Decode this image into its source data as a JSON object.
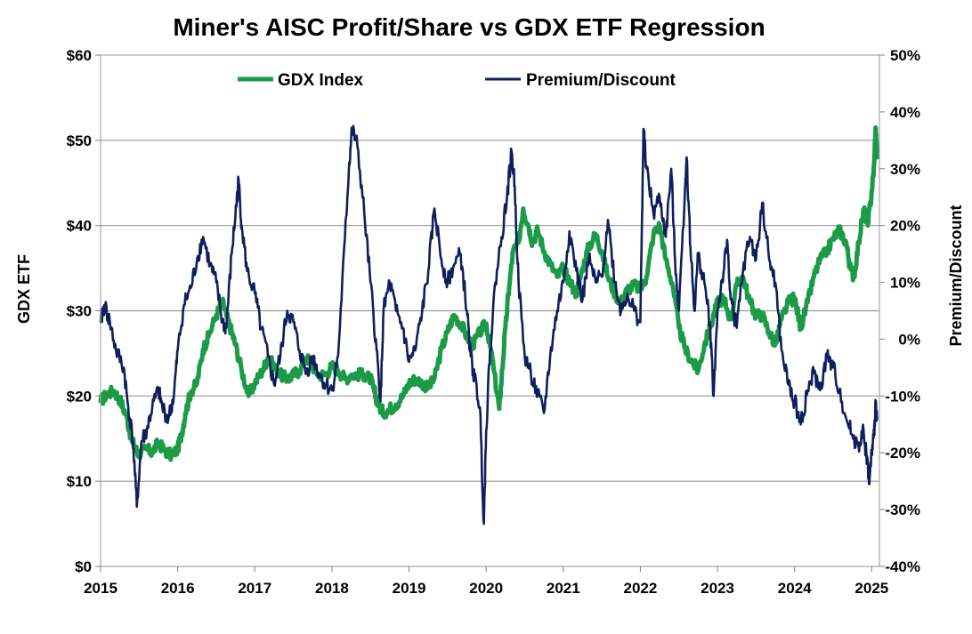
{
  "chart_data": {
    "type": "line",
    "title": "Miner's AISC Profit/Share vs GDX ETF Regression",
    "ylabel": "GDX ETF",
    "y2label": "Premium/Discount",
    "xlim": [
      2015,
      2025.1
    ],
    "ylim": [
      0,
      60
    ],
    "y2lim": [
      -40,
      50
    ],
    "x_ticks": [
      "2015",
      "2016",
      "2017",
      "2018",
      "2019",
      "2020",
      "2021",
      "2022",
      "2023",
      "2024",
      "2025"
    ],
    "y_ticks": [
      "$0",
      "$10",
      "$20",
      "$30",
      "$40",
      "$50",
      "$60"
    ],
    "y2_ticks": [
      "-40%",
      "-30%",
      "-20%",
      "-10%",
      "0%",
      "10%",
      "20%",
      "30%",
      "40%",
      "50%"
    ],
    "legend_position": "top-center",
    "grid": "horizontal",
    "colors": {
      "gdx": "#1b9a47",
      "premium": "#0f1f5c",
      "grid": "#9a9a9a",
      "border": "#a6a6a6"
    },
    "series": [
      {
        "name": "GDX Index",
        "axis": "left",
        "points": [
          [
            2015.0,
            19.4
          ],
          [
            2015.08,
            20.2
          ],
          [
            2015.17,
            20.6
          ],
          [
            2015.25,
            19.6
          ],
          [
            2015.33,
            17.8
          ],
          [
            2015.4,
            15.0
          ],
          [
            2015.45,
            13.8
          ],
          [
            2015.5,
            13.2
          ],
          [
            2015.58,
            13.8
          ],
          [
            2015.67,
            13.4
          ],
          [
            2015.75,
            14.5
          ],
          [
            2015.83,
            13.6
          ],
          [
            2015.92,
            13.0
          ],
          [
            2016.0,
            13.8
          ],
          [
            2016.05,
            15.5
          ],
          [
            2016.1,
            18.0
          ],
          [
            2016.17,
            20.5
          ],
          [
            2016.25,
            21.5
          ],
          [
            2016.33,
            25.5
          ],
          [
            2016.4,
            27.0
          ],
          [
            2016.5,
            29.5
          ],
          [
            2016.58,
            31.0
          ],
          [
            2016.63,
            29.5
          ],
          [
            2016.7,
            27.5
          ],
          [
            2016.75,
            26.0
          ],
          [
            2016.83,
            23.0
          ],
          [
            2016.92,
            20.0
          ],
          [
            2017.0,
            21.5
          ],
          [
            2017.1,
            23.0
          ],
          [
            2017.17,
            24.5
          ],
          [
            2017.25,
            23.5
          ],
          [
            2017.33,
            22.5
          ],
          [
            2017.42,
            22.0
          ],
          [
            2017.5,
            22.5
          ],
          [
            2017.58,
            23.0
          ],
          [
            2017.67,
            24.5
          ],
          [
            2017.75,
            23.5
          ],
          [
            2017.83,
            22.5
          ],
          [
            2017.92,
            22.5
          ],
          [
            2018.0,
            23.5
          ],
          [
            2018.08,
            23.0
          ],
          [
            2018.17,
            22.0
          ],
          [
            2018.25,
            22.5
          ],
          [
            2018.33,
            22.5
          ],
          [
            2018.42,
            22.5
          ],
          [
            2018.5,
            22.0
          ],
          [
            2018.55,
            20.5
          ],
          [
            2018.6,
            19.0
          ],
          [
            2018.67,
            18.0
          ],
          [
            2018.75,
            18.5
          ],
          [
            2018.83,
            19.0
          ],
          [
            2018.92,
            20.0
          ],
          [
            2019.0,
            21.5
          ],
          [
            2019.08,
            22.0
          ],
          [
            2019.17,
            21.5
          ],
          [
            2019.25,
            21.0
          ],
          [
            2019.33,
            22.0
          ],
          [
            2019.42,
            25.5
          ],
          [
            2019.5,
            27.5
          ],
          [
            2019.58,
            29.5
          ],
          [
            2019.67,
            28.5
          ],
          [
            2019.75,
            27.0
          ],
          [
            2019.83,
            26.0
          ],
          [
            2019.92,
            27.5
          ],
          [
            2020.0,
            28.5
          ],
          [
            2020.05,
            26.0
          ],
          [
            2020.1,
            23.0
          ],
          [
            2020.17,
            18.5
          ],
          [
            2020.2,
            22.0
          ],
          [
            2020.25,
            28.0
          ],
          [
            2020.3,
            33.0
          ],
          [
            2020.35,
            37.0
          ],
          [
            2020.42,
            38.0
          ],
          [
            2020.48,
            42.0
          ],
          [
            2020.55,
            40.0
          ],
          [
            2020.6,
            38.0
          ],
          [
            2020.67,
            39.5
          ],
          [
            2020.75,
            37.0
          ],
          [
            2020.83,
            35.5
          ],
          [
            2020.92,
            34.0
          ],
          [
            2021.0,
            35.0
          ],
          [
            2021.08,
            33.5
          ],
          [
            2021.17,
            32.0
          ],
          [
            2021.25,
            35.0
          ],
          [
            2021.33,
            37.5
          ],
          [
            2021.42,
            39.0
          ],
          [
            2021.5,
            37.0
          ],
          [
            2021.58,
            34.0
          ],
          [
            2021.67,
            32.0
          ],
          [
            2021.75,
            31.0
          ],
          [
            2021.83,
            32.5
          ],
          [
            2021.92,
            33.0
          ],
          [
            2022.0,
            32.5
          ],
          [
            2022.08,
            34.0
          ],
          [
            2022.17,
            39.0
          ],
          [
            2022.25,
            40.0
          ],
          [
            2022.33,
            36.0
          ],
          [
            2022.42,
            33.0
          ],
          [
            2022.5,
            28.0
          ],
          [
            2022.58,
            25.5
          ],
          [
            2022.67,
            24.0
          ],
          [
            2022.75,
            23.0
          ],
          [
            2022.83,
            26.0
          ],
          [
            2022.92,
            28.5
          ],
          [
            2023.0,
            31.0
          ],
          [
            2023.08,
            31.5
          ],
          [
            2023.17,
            29.0
          ],
          [
            2023.25,
            33.0
          ],
          [
            2023.33,
            34.0
          ],
          [
            2023.42,
            31.0
          ],
          [
            2023.5,
            29.5
          ],
          [
            2023.58,
            29.5
          ],
          [
            2023.67,
            27.5
          ],
          [
            2023.75,
            26.0
          ],
          [
            2023.83,
            29.0
          ],
          [
            2023.92,
            31.0
          ],
          [
            2024.0,
            31.5
          ],
          [
            2024.08,
            28.0
          ],
          [
            2024.17,
            31.0
          ],
          [
            2024.25,
            34.0
          ],
          [
            2024.33,
            36.0
          ],
          [
            2024.42,
            37.0
          ],
          [
            2024.5,
            38.5
          ],
          [
            2024.58,
            39.5
          ],
          [
            2024.67,
            38.0
          ],
          [
            2024.72,
            35.0
          ],
          [
            2024.77,
            34.0
          ],
          [
            2024.83,
            38.0
          ],
          [
            2024.9,
            42.0
          ],
          [
            2024.95,
            40.0
          ],
          [
            2025.0,
            44.0
          ],
          [
            2025.03,
            47.0
          ],
          [
            2025.05,
            51.5
          ],
          [
            2025.07,
            48.0
          ]
        ]
      },
      {
        "name": "Premium/Discount",
        "axis": "right",
        "points": [
          [
            2015.0,
            3.0
          ],
          [
            2015.05,
            6.0
          ],
          [
            2015.12,
            3.0
          ],
          [
            2015.2,
            -2.0
          ],
          [
            2015.3,
            -5.0
          ],
          [
            2015.35,
            -11.0
          ],
          [
            2015.42,
            -18.0
          ],
          [
            2015.47,
            -29.5
          ],
          [
            2015.53,
            -18.0
          ],
          [
            2015.6,
            -16.0
          ],
          [
            2015.67,
            -12.0
          ],
          [
            2015.75,
            -9.0
          ],
          [
            2015.8,
            -12.0
          ],
          [
            2015.88,
            -14.0
          ],
          [
            2015.95,
            -10.0
          ],
          [
            2016.0,
            -2.0
          ],
          [
            2016.08,
            6.0
          ],
          [
            2016.17,
            9.0
          ],
          [
            2016.25,
            14.0
          ],
          [
            2016.33,
            18.0
          ],
          [
            2016.42,
            13.0
          ],
          [
            2016.5,
            10.0
          ],
          [
            2016.58,
            3.0
          ],
          [
            2016.63,
            2.0
          ],
          [
            2016.7,
            15.0
          ],
          [
            2016.75,
            22.0
          ],
          [
            2016.79,
            28.0
          ],
          [
            2016.83,
            20.0
          ],
          [
            2016.9,
            12.0
          ],
          [
            2017.0,
            8.0
          ],
          [
            2017.08,
            2.0
          ],
          [
            2017.17,
            -3.0
          ],
          [
            2017.25,
            -8.0
          ],
          [
            2017.33,
            -3.0
          ],
          [
            2017.42,
            5.0
          ],
          [
            2017.5,
            3.0
          ],
          [
            2017.58,
            -2.0
          ],
          [
            2017.67,
            -6.0
          ],
          [
            2017.75,
            -3.0
          ],
          [
            2017.83,
            -6.0
          ],
          [
            2017.92,
            -8.0
          ],
          [
            2018.0,
            -9.0
          ],
          [
            2018.08,
            -3.0
          ],
          [
            2018.17,
            18.0
          ],
          [
            2018.22,
            30.0
          ],
          [
            2018.26,
            37.0
          ],
          [
            2018.33,
            34.0
          ],
          [
            2018.42,
            22.0
          ],
          [
            2018.5,
            10.0
          ],
          [
            2018.58,
            -2.0
          ],
          [
            2018.63,
            -11.0
          ],
          [
            2018.67,
            5.0
          ],
          [
            2018.75,
            10.0
          ],
          [
            2018.83,
            5.0
          ],
          [
            2018.92,
            2.0
          ],
          [
            2019.0,
            -4.0
          ],
          [
            2019.08,
            -2.0
          ],
          [
            2019.17,
            5.0
          ],
          [
            2019.25,
            12.0
          ],
          [
            2019.33,
            23.0
          ],
          [
            2019.42,
            14.0
          ],
          [
            2019.5,
            10.0
          ],
          [
            2019.58,
            13.0
          ],
          [
            2019.67,
            15.0
          ],
          [
            2019.75,
            5.0
          ],
          [
            2019.8,
            -3.0
          ],
          [
            2019.85,
            -7.0
          ],
          [
            2019.92,
            -12.0
          ],
          [
            2019.97,
            -32.5
          ],
          [
            2020.0,
            -16.0
          ],
          [
            2020.05,
            -2.0
          ],
          [
            2020.12,
            10.0
          ],
          [
            2020.2,
            18.0
          ],
          [
            2020.27,
            25.0
          ],
          [
            2020.33,
            33.0
          ],
          [
            2020.37,
            27.0
          ],
          [
            2020.42,
            10.0
          ],
          [
            2020.5,
            -3.0
          ],
          [
            2020.58,
            -6.0
          ],
          [
            2020.67,
            -10.0
          ],
          [
            2020.75,
            -13.0
          ],
          [
            2020.83,
            -3.0
          ],
          [
            2020.92,
            5.0
          ],
          [
            2021.0,
            10.0
          ],
          [
            2021.08,
            19.0
          ],
          [
            2021.17,
            12.0
          ],
          [
            2021.25,
            7.0
          ],
          [
            2021.33,
            14.0
          ],
          [
            2021.42,
            10.0
          ],
          [
            2021.5,
            11.0
          ],
          [
            2021.58,
            21.0
          ],
          [
            2021.67,
            10.0
          ],
          [
            2021.75,
            5.0
          ],
          [
            2021.83,
            8.0
          ],
          [
            2021.92,
            5.0
          ],
          [
            2022.0,
            3.0
          ],
          [
            2022.04,
            37.0
          ],
          [
            2022.08,
            30.0
          ],
          [
            2022.17,
            22.0
          ],
          [
            2022.25,
            25.0
          ],
          [
            2022.33,
            18.0
          ],
          [
            2022.4,
            30.0
          ],
          [
            2022.45,
            14.0
          ],
          [
            2022.5,
            5.0
          ],
          [
            2022.58,
            27.0
          ],
          [
            2022.6,
            32.0
          ],
          [
            2022.65,
            16.0
          ],
          [
            2022.7,
            5.0
          ],
          [
            2022.75,
            15.0
          ],
          [
            2022.83,
            10.0
          ],
          [
            2022.9,
            3.0
          ],
          [
            2022.95,
            -10.0
          ],
          [
            2023.0,
            5.0
          ],
          [
            2023.08,
            12.0
          ],
          [
            2023.13,
            17.0
          ],
          [
            2023.17,
            7.0
          ],
          [
            2023.25,
            2.0
          ],
          [
            2023.33,
            12.0
          ],
          [
            2023.42,
            18.0
          ],
          [
            2023.5,
            14.0
          ],
          [
            2023.58,
            24.0
          ],
          [
            2023.67,
            14.0
          ],
          [
            2023.75,
            10.0
          ],
          [
            2023.83,
            -2.0
          ],
          [
            2023.92,
            -8.0
          ],
          [
            2024.0,
            -11.0
          ],
          [
            2024.08,
            -15.0
          ],
          [
            2024.17,
            -9.0
          ],
          [
            2024.25,
            -6.0
          ],
          [
            2024.33,
            -9.0
          ],
          [
            2024.42,
            -3.0
          ],
          [
            2024.5,
            -5.0
          ],
          [
            2024.58,
            -9.0
          ],
          [
            2024.67,
            -14.0
          ],
          [
            2024.75,
            -17.0
          ],
          [
            2024.83,
            -19.0
          ],
          [
            2024.88,
            -16.0
          ],
          [
            2024.93,
            -20.0
          ],
          [
            2024.97,
            -25.5
          ],
          [
            2025.0,
            -20.0
          ],
          [
            2025.03,
            -17.0
          ],
          [
            2025.05,
            -11.0
          ],
          [
            2025.07,
            -14.0
          ]
        ]
      }
    ]
  }
}
